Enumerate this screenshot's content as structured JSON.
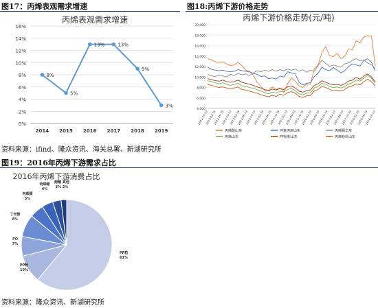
{
  "fig17_caption": "图17：丙烯表观需求增速",
  "fig18_caption": "图18:丙烯下游价格走势",
  "fig19_caption": "图19：2016年丙烯下游需求占比",
  "source1": "资料来源：ifind、隆众资讯、海关总署、新湖研究所",
  "source2": "资料来源：隆众资讯、新湖研究所",
  "colors": {
    "rule": "#1f3864",
    "line17": "#5b9bd5",
    "orange": "#ed7d31",
    "blue": "#4472c4",
    "green": "#70ad47",
    "darkred": "#9e3b14",
    "gray": "#888888"
  },
  "chart_data": [
    {
      "type": "line",
      "title": "丙烯表观需求增速",
      "categories": [
        "2014",
        "2015",
        "2016",
        "2017",
        "2018",
        "2019"
      ],
      "values": [
        8,
        5,
        13,
        13,
        9,
        3
      ],
      "data_labels": [
        "8%",
        "5%",
        "13%",
        "13%",
        "9%",
        "3%"
      ],
      "ylim": [
        0,
        16
      ],
      "yticks": [
        "0%",
        "2%",
        "4%",
        "6%",
        "8%",
        "10%",
        "12%",
        "14%",
        "16%"
      ],
      "grid": true,
      "legend": "none"
    },
    {
      "type": "line",
      "title": "丙烯下游价格走势(元/吨)",
      "ylim": [
        4000,
        20000
      ],
      "yticks": [
        "4,000",
        "6,000",
        "8,000",
        "10,000",
        "12,000",
        "14,000",
        "16,000",
        "18,000",
        "20,000"
      ],
      "xticks": [
        "2011-10-13",
        "2012-02-13",
        "2012-06-13",
        "2012-10-13",
        "2013-02-13",
        "2013-06-13",
        "2013-10-13",
        "2014-02-13",
        "2014-06-13",
        "2014-10-13",
        "2015-02-13",
        "2015-06-13",
        "2015-10-13",
        "2016-02-13",
        "2016-06-13",
        "2016-10-13",
        "2017-02-13",
        "2017-06-13",
        "2017-10-13",
        "2018-02-13",
        "2018-06-13",
        "2018-10-13"
      ],
      "legend": "bottom",
      "series": [
        {
          "name": "丙烯酸山东",
          "values": [
            13500,
            13300,
            12900,
            12800,
            12900,
            12500,
            12200,
            12300,
            12800,
            12200,
            11300,
            11100,
            10400,
            9000,
            8200,
            7400,
            7500,
            8100,
            7600,
            7900,
            7200,
            8700,
            9800,
            9200,
            8300,
            8000,
            8700,
            8600,
            11600,
            12300,
            14700,
            15800,
            14100,
            13900,
            14500,
            13500,
            14000,
            15400,
            15200,
            16900,
            16600,
            17600,
            17900,
            17800,
            12100
          ]
        },
        {
          "name": "环氧丙烷山东",
          "values": [
            11900,
            11500,
            11300,
            11200,
            11300,
            11100,
            11000,
            11100,
            11400,
            11200,
            11100,
            11000,
            10700,
            10500,
            10100,
            10200,
            9700,
            9800,
            9600,
            10200,
            10000,
            11000,
            10800,
            10600,
            9000,
            8500,
            8800,
            8900,
            10100,
            10700,
            11900,
            11400,
            11200,
            11800,
            11300,
            10800,
            11200,
            12000,
            12500,
            12300,
            12100,
            13200,
            13500,
            12800,
            11100
          ]
        },
        {
          "name": "丙烯腈华东",
          "values": [
            10500,
            10200,
            10100,
            10400,
            10200,
            10000,
            10500,
            10300,
            10700,
            10400,
            10600,
            10300,
            10800,
            11200,
            11000,
            11300,
            11100,
            11400,
            11100,
            11400,
            11200,
            11500,
            11300,
            11500,
            11100,
            11400,
            10900,
            11300,
            11100,
            12200,
            13200,
            12600,
            12000,
            12300,
            12100,
            11900,
            12500,
            12700,
            13200,
            13500,
            13100,
            13300,
            12700,
            12400,
            11600
          ]
        },
        {
          "name": "丙烯山东",
          "values": [
            9300,
            9100,
            8900,
            8700,
            8900,
            8600,
            8400,
            8600,
            8800,
            8300,
            8200,
            8000,
            7800,
            7600,
            7300,
            7000,
            6800,
            7100,
            6900,
            7300,
            7100,
            7600,
            7800,
            7400,
            6800,
            6600,
            6900,
            7000,
            7900,
            8200,
            8800,
            8600,
            8200,
            8000,
            8100,
            7900,
            8200,
            8700,
            8900,
            9400,
            9200,
            9800,
            10300,
            9800,
            8800
          ]
        },
        {
          "name": "PP粉料山东",
          "values": [
            9700,
            9500,
            9300,
            9200,
            9400,
            9100,
            9000,
            9100,
            9400,
            9000,
            8800,
            8600,
            8400,
            8100,
            7900,
            7600,
            7400,
            7700,
            7500,
            7800,
            7600,
            8100,
            8300,
            7900,
            7300,
            7100,
            7400,
            7500,
            8400,
            8700,
            9300,
            9000,
            8700,
            8500,
            8600,
            8400,
            8700,
            9200,
            9400,
            9900,
            9600,
            10200,
            10600,
            10000,
            9100
          ]
        },
        {
          "name": "丙烯粉料山东",
          "values": [
            8600,
            8400,
            8200,
            8000,
            8100,
            7900,
            7700,
            7900,
            8100,
            7600,
            7500,
            7300,
            7100,
            6900,
            6600,
            6400,
            6200,
            6500,
            6300,
            6700,
            6500,
            7000,
            7200,
            6900,
            6300,
            6100,
            6400,
            6500,
            7300,
            7600,
            8200,
            8000,
            7600,
            7400,
            7500,
            7300,
            7600,
            8100,
            8300,
            8700,
            8500,
            9100,
            9600,
            9100,
            8300
          ]
        }
      ]
    },
    {
      "type": "pie",
      "title": "2016年丙烯下游消费占比",
      "slices": [
        {
          "name": "PP粒",
          "value": 61,
          "label": "61%"
        },
        {
          "name": "PP粉",
          "value": 10,
          "label": "10%"
        },
        {
          "name": "PO",
          "value": 7,
          "label": "7%"
        },
        {
          "name": "丁辛醇",
          "value": 8,
          "label": "8%"
        },
        {
          "name": "丙烯腈",
          "value": 5,
          "label": "5%"
        },
        {
          "name": "丙烯酸",
          "value": 4,
          "label": "4%"
        },
        {
          "name": "酚酮",
          "value": 3,
          "label": "3%"
        },
        {
          "name": "其他",
          "value": 2,
          "label": ""
        }
      ],
      "colors": [
        "#c5cce7",
        "#aab8df",
        "#8ea5dc",
        "#6b8bd3",
        "#4d74c9",
        "#3864b8",
        "#2e4f9a",
        "#1f3d7e"
      ]
    }
  ]
}
